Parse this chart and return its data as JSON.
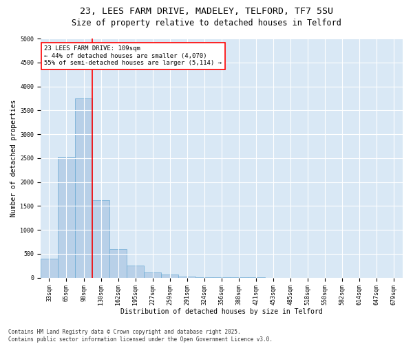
{
  "title_line1": "23, LEES FARM DRIVE, MADELEY, TELFORD, TF7 5SU",
  "title_line2": "Size of property relative to detached houses in Telford",
  "xlabel": "Distribution of detached houses by size in Telford",
  "ylabel": "Number of detached properties",
  "categories": [
    "33sqm",
    "65sqm",
    "98sqm",
    "130sqm",
    "162sqm",
    "195sqm",
    "227sqm",
    "259sqm",
    "291sqm",
    "324sqm",
    "356sqm",
    "388sqm",
    "421sqm",
    "453sqm",
    "485sqm",
    "518sqm",
    "550sqm",
    "582sqm",
    "614sqm",
    "647sqm",
    "679sqm"
  ],
  "values": [
    400,
    2520,
    3750,
    1625,
    600,
    250,
    115,
    65,
    30,
    12,
    5,
    3,
    2,
    1,
    1,
    1,
    0,
    0,
    0,
    0,
    0
  ],
  "bar_color": "#b8d0e8",
  "bar_edge_color": "#6aaad4",
  "bg_color": "#d9e8f5",
  "vline_color": "red",
  "annotation_text": "23 LEES FARM DRIVE: 109sqm\n← 44% of detached houses are smaller (4,070)\n55% of semi-detached houses are larger (5,114) →",
  "annotation_box_color": "white",
  "annotation_box_edge": "red",
  "ylim": [
    0,
    5000
  ],
  "yticks": [
    0,
    500,
    1000,
    1500,
    2000,
    2500,
    3000,
    3500,
    4000,
    4500,
    5000
  ],
  "footer_line1": "Contains HM Land Registry data © Crown copyright and database right 2025.",
  "footer_line2": "Contains public sector information licensed under the Open Government Licence v3.0.",
  "title_fontsize": 9.5,
  "subtitle_fontsize": 8.5,
  "label_fontsize": 7,
  "tick_fontsize": 6,
  "annotation_fontsize": 6.5,
  "footer_fontsize": 5.5
}
